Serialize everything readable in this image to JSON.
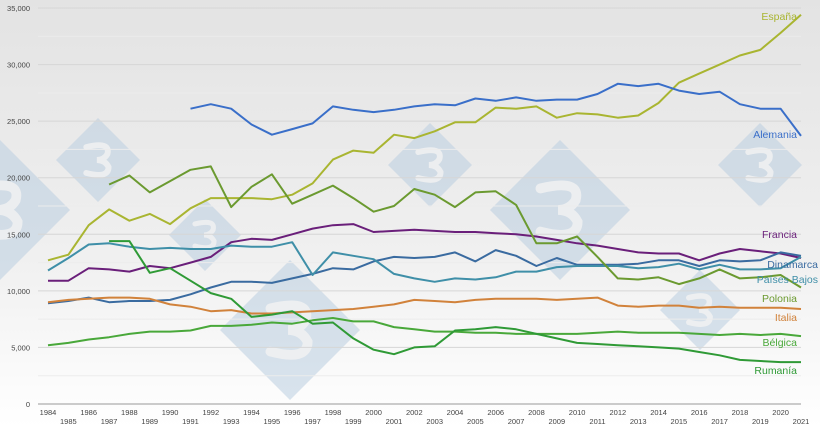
{
  "watermark": "3",
  "chart_data": {
    "type": "line",
    "title": "",
    "xlabel": "",
    "ylabel": "",
    "ylim": [
      0,
      35000
    ],
    "yticks": [
      0,
      5000,
      10000,
      15000,
      20000,
      25000,
      30000,
      35000
    ],
    "ytick_labels": [
      "0",
      "5,000",
      "10,000",
      "15,000",
      "20,000",
      "25,000",
      "30,000",
      "35,000"
    ],
    "grid": true,
    "minor_grid_step": 2500,
    "legend": "inline labels at right end of lines",
    "x": [
      1984,
      1985,
      1986,
      1987,
      1988,
      1989,
      1990,
      1991,
      1992,
      1993,
      1994,
      1995,
      1996,
      1997,
      1998,
      1999,
      2000,
      2001,
      2002,
      2003,
      2004,
      2005,
      2006,
      2007,
      2008,
      2009,
      2010,
      2011,
      2012,
      2013,
      2014,
      2015,
      2016,
      2017,
      2018,
      2019,
      2020,
      2021
    ],
    "xtick_labels": [
      "1984",
      "1985",
      "1986",
      "1987",
      "1988",
      "1989",
      "1990",
      "1991",
      "1992",
      "1993",
      "1994",
      "1995",
      "1996",
      "1997",
      "1998",
      "1999",
      "2000",
      "2001",
      "2002",
      "2003",
      "2004",
      "2005",
      "2006",
      "2007",
      "2008",
      "2009",
      "2010",
      "2011",
      "2012",
      "2013",
      "2014",
      "2015",
      "2016",
      "2017",
      "2018",
      "2019",
      "2020",
      "2021"
    ],
    "series": [
      {
        "name": "España",
        "color": "#a9b531",
        "values": [
          12700,
          13200,
          15800,
          17200,
          16200,
          16800,
          15900,
          17300,
          18200,
          18200,
          18200,
          18100,
          18500,
          19500,
          21600,
          22400,
          22200,
          23800,
          23500,
          24100,
          24900,
          24900,
          26200,
          26100,
          26300,
          25300,
          25700,
          25600,
          25300,
          25500,
          26600,
          28400,
          29200,
          30000,
          30800,
          31300,
          32800,
          34400
        ]
      },
      {
        "name": "Alemania",
        "color": "#3a6fc9",
        "values": [
          null,
          null,
          null,
          null,
          null,
          null,
          null,
          26100,
          26500,
          26100,
          24700,
          23800,
          24300,
          24800,
          26300,
          26000,
          25800,
          26000,
          26300,
          26500,
          26400,
          27000,
          26800,
          27100,
          26800,
          26900,
          26900,
          27400,
          28300,
          28100,
          28300,
          27700,
          27400,
          27600,
          26500,
          26100,
          26100,
          23700
        ]
      },
      {
        "name": "Francia",
        "color": "#6a1f7a",
        "values": [
          10900,
          10900,
          12000,
          11900,
          11700,
          12200,
          12000,
          12500,
          13000,
          14300,
          14600,
          14500,
          15000,
          15500,
          15800,
          15900,
          15200,
          15300,
          15400,
          15300,
          15200,
          15200,
          15100,
          15000,
          14800,
          14500,
          14200,
          14000,
          13700,
          13400,
          13300,
          13300,
          12700,
          13300,
          13700,
          13500,
          13300,
          12900
        ]
      },
      {
        "name": "Dinamarca",
        "color": "#3a6ba0",
        "values": [
          8900,
          9100,
          9400,
          9000,
          9100,
          9100,
          9200,
          9700,
          10300,
          10800,
          10800,
          10700,
          11100,
          11500,
          12000,
          11900,
          12600,
          13000,
          12900,
          13000,
          13400,
          12600,
          13600,
          13100,
          12200,
          12900,
          12300,
          12300,
          12300,
          12400,
          12700,
          12700,
          12200,
          12700,
          12600,
          12700,
          13400,
          13100
        ]
      },
      {
        "name": "Países Bajos",
        "color": "#3f8fa8",
        "values": [
          11800,
          12900,
          14100,
          14200,
          13900,
          13700,
          13800,
          13700,
          13700,
          14000,
          13900,
          13900,
          14300,
          11400,
          13400,
          13100,
          12800,
          11500,
          11100,
          10800,
          11100,
          11000,
          11200,
          11700,
          11700,
          12100,
          12200,
          12200,
          12200,
          12000,
          12100,
          12400,
          11900,
          12300,
          11900,
          11900,
          12000,
          13000
        ]
      },
      {
        "name": "Polonia",
        "color": "#6b9a30",
        "values": [
          null,
          null,
          null,
          19400,
          20200,
          18700,
          19700,
          20700,
          21000,
          17400,
          19200,
          20300,
          17700,
          18500,
          19300,
          18200,
          17000,
          17500,
          19000,
          18500,
          17400,
          18700,
          18800,
          17600,
          14200,
          14200,
          14800,
          13000,
          11100,
          11000,
          11200,
          10600,
          11100,
          11900,
          11100,
          11200,
          11400,
          10300
        ]
      },
      {
        "name": "Italia",
        "color": "#d1823b",
        "values": [
          9000,
          9200,
          9300,
          9400,
          9400,
          9300,
          8800,
          8600,
          8200,
          8300,
          8000,
          8000,
          8100,
          8200,
          8300,
          8400,
          8600,
          8800,
          9200,
          9100,
          9000,
          9200,
          9300,
          9300,
          9300,
          9200,
          9300,
          9400,
          8700,
          8600,
          8700,
          8700,
          8500,
          8600,
          8500,
          8500,
          8500,
          8400
        ]
      },
      {
        "name": "Bélgica",
        "color": "#49a83a",
        "values": [
          5200,
          5400,
          5700,
          5900,
          6200,
          6400,
          6400,
          6500,
          6900,
          6900,
          7000,
          7200,
          7100,
          7400,
          7600,
          7300,
          7300,
          6800,
          6600,
          6400,
          6400,
          6300,
          6300,
          6200,
          6200,
          6200,
          6200,
          6300,
          6400,
          6300,
          6300,
          6300,
          6200,
          6100,
          6200,
          6100,
          6200,
          6000
        ]
      },
      {
        "name": "Rumanía",
        "color": "#2f9a36",
        "values": [
          null,
          null,
          null,
          14400,
          14400,
          11600,
          12000,
          10900,
          9800,
          9300,
          7700,
          7900,
          8200,
          7100,
          7200,
          5800,
          4800,
          4400,
          5000,
          5100,
          6500,
          6600,
          6800,
          6600,
          6200,
          5800,
          5400,
          5300,
          5200,
          5100,
          5000,
          4900,
          4600,
          4300,
          3900,
          3800,
          3700,
          3700
        ]
      }
    ]
  }
}
